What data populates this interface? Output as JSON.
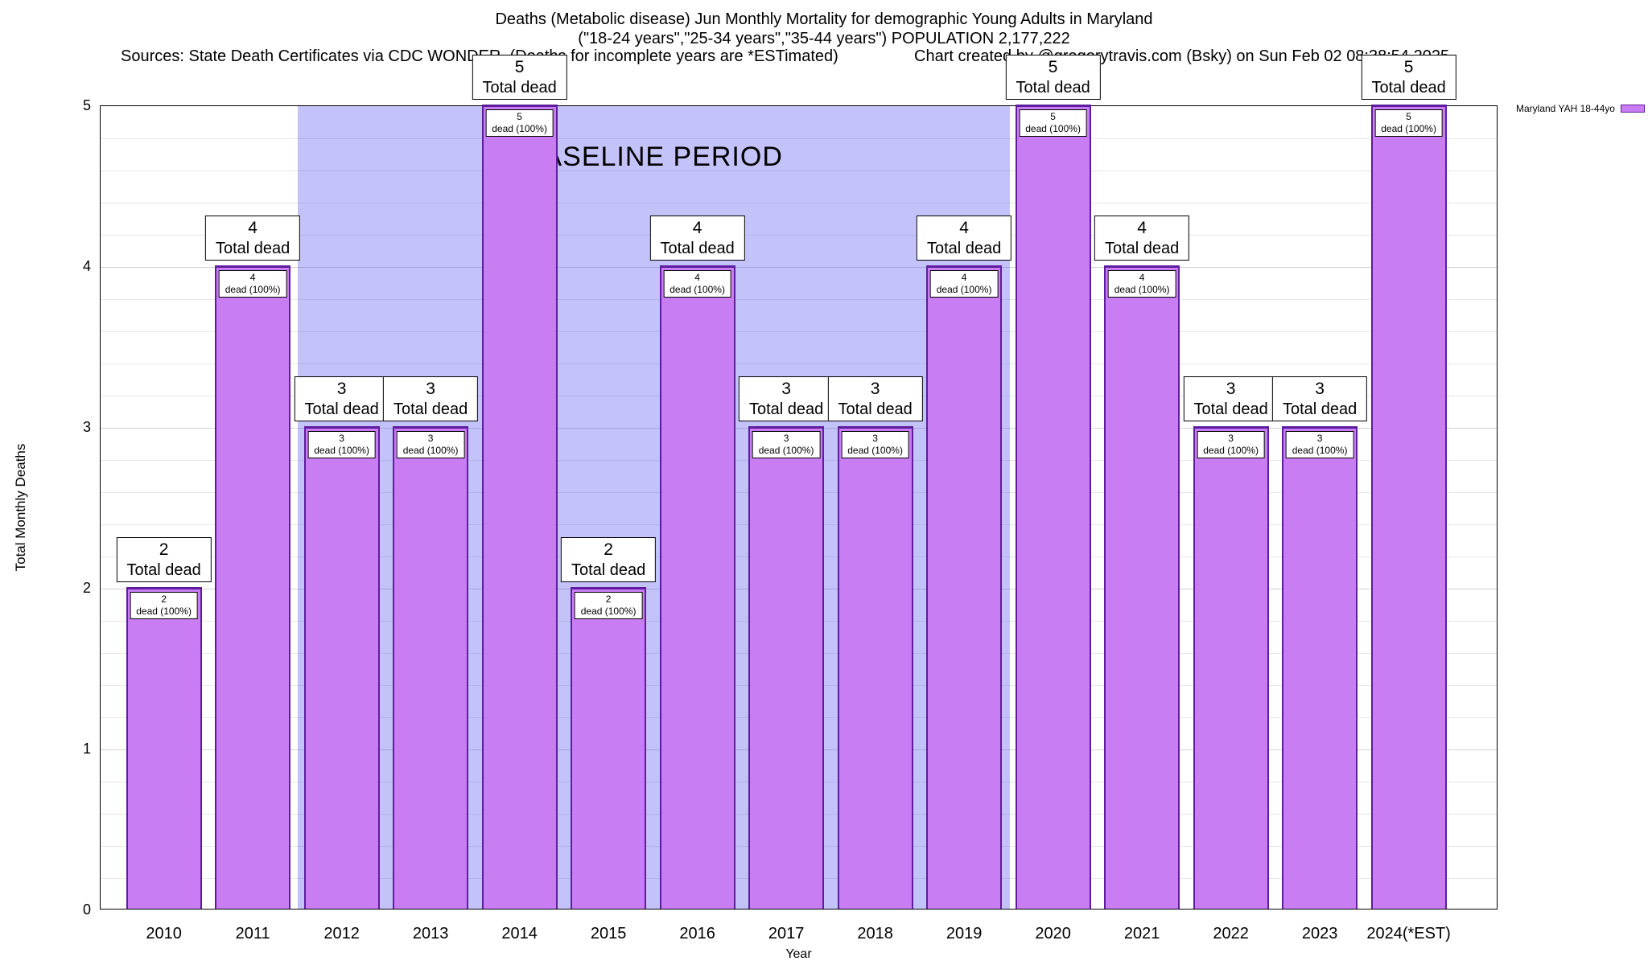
{
  "header": {
    "title_line1": "Deaths (Metabolic disease) Jun Monthly Mortality for demographic Young Adults in Maryland",
    "title_line2": "(\"18-24 years\",\"25-34 years\",\"35-44 years\") POPULATION 2,177,222",
    "sources": "Sources: State Death Certificates via CDC WONDER. (Deaths for incomplete years are *ESTimated)",
    "credit": "Chart created by @gregorytravis.com (Bsky) on Sun Feb 02 08:38:54 2025"
  },
  "chart_data": {
    "type": "bar",
    "title": "Deaths (Metabolic disease) Jun Monthly Mortality for demographic Young Adults in Maryland (\"18-24 years\",\"25-34 years\",\"35-44 years\") POPULATION 2,177,222",
    "categories": [
      "2010",
      "2011",
      "2012",
      "2013",
      "2014",
      "2015",
      "2016",
      "2017",
      "2018",
      "2019",
      "2020",
      "2021",
      "2022",
      "2023",
      "2024(*EST)"
    ],
    "values": [
      2,
      4,
      3,
      3,
      5,
      2,
      4,
      3,
      3,
      4,
      5,
      4,
      3,
      3,
      5
    ],
    "bar_annotation_top": "Total dead",
    "bar_annotation_inner": "dead (100%)",
    "xlabel": "Year",
    "ylabel": "Total Monthly Deaths",
    "ylim": [
      0,
      5
    ],
    "yticks": [
      0,
      1,
      2,
      3,
      4,
      5
    ],
    "grid": "horizontal minor lines every 0.2, major every 1.0",
    "legend_position": "top-right outside plot",
    "legend": [
      {
        "name": "Maryland YAH 18-44yo",
        "color": "#c97df2"
      }
    ],
    "baseline_band": {
      "label": "BASELINE PERIOD",
      "start_category": "2012",
      "end_category": "2019",
      "color": "#5050f058"
    },
    "colors": {
      "bar_fill": "#c97df2",
      "bar_border": "#5e1d9e",
      "band": "#5050f058",
      "grid_minor": "#e7e7e7",
      "grid_major": "#d2d2d2"
    }
  }
}
